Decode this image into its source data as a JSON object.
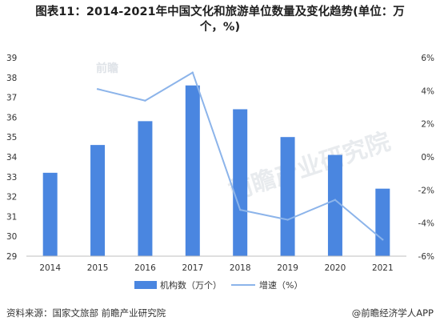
{
  "title": {
    "line1": "图表11：2014-2021年中国文化和旅游单位数量及变化趋势(单位：万",
    "line2": "个，%)"
  },
  "chart_data": {
    "type": "bar+line",
    "categories": [
      "2014",
      "2015",
      "2016",
      "2017",
      "2018",
      "2019",
      "2020",
      "2021"
    ],
    "series": [
      {
        "name": "机构数（万个）",
        "type": "bar",
        "axis": "left",
        "color": "#4A86E0",
        "values": [
          33.2,
          34.6,
          35.8,
          37.6,
          36.4,
          35.0,
          34.1,
          32.4
        ]
      },
      {
        "name": "增速（%）",
        "type": "line",
        "axis": "right",
        "color": "#8CB4EA",
        "values": [
          null,
          4.1,
          3.4,
          5.1,
          -3.2,
          -3.8,
          -2.6,
          -5.0
        ]
      }
    ],
    "y_left": {
      "min": 29,
      "max": 39,
      "ticks": [
        "29",
        "30",
        "31",
        "32",
        "33",
        "34",
        "35",
        "36",
        "37",
        "38",
        "39"
      ]
    },
    "y_right": {
      "min": -6,
      "max": 6,
      "ticks": [
        "-6%",
        "-4%",
        "-2%",
        "0%",
        "2%",
        "4%",
        "6%"
      ]
    },
    "legend_position": "bottom",
    "grid": false
  },
  "watermark": {
    "brand": "前瞻",
    "text": "前瞻产业研究院"
  },
  "footer": {
    "source": "资料来源：国家文旅部 前瞻产业研究院",
    "credit": "@前瞻经济学人APP"
  },
  "colors": {
    "bar": "#4A86E0",
    "line": "#8CB4EA",
    "axis": "#bfbfbf"
  }
}
